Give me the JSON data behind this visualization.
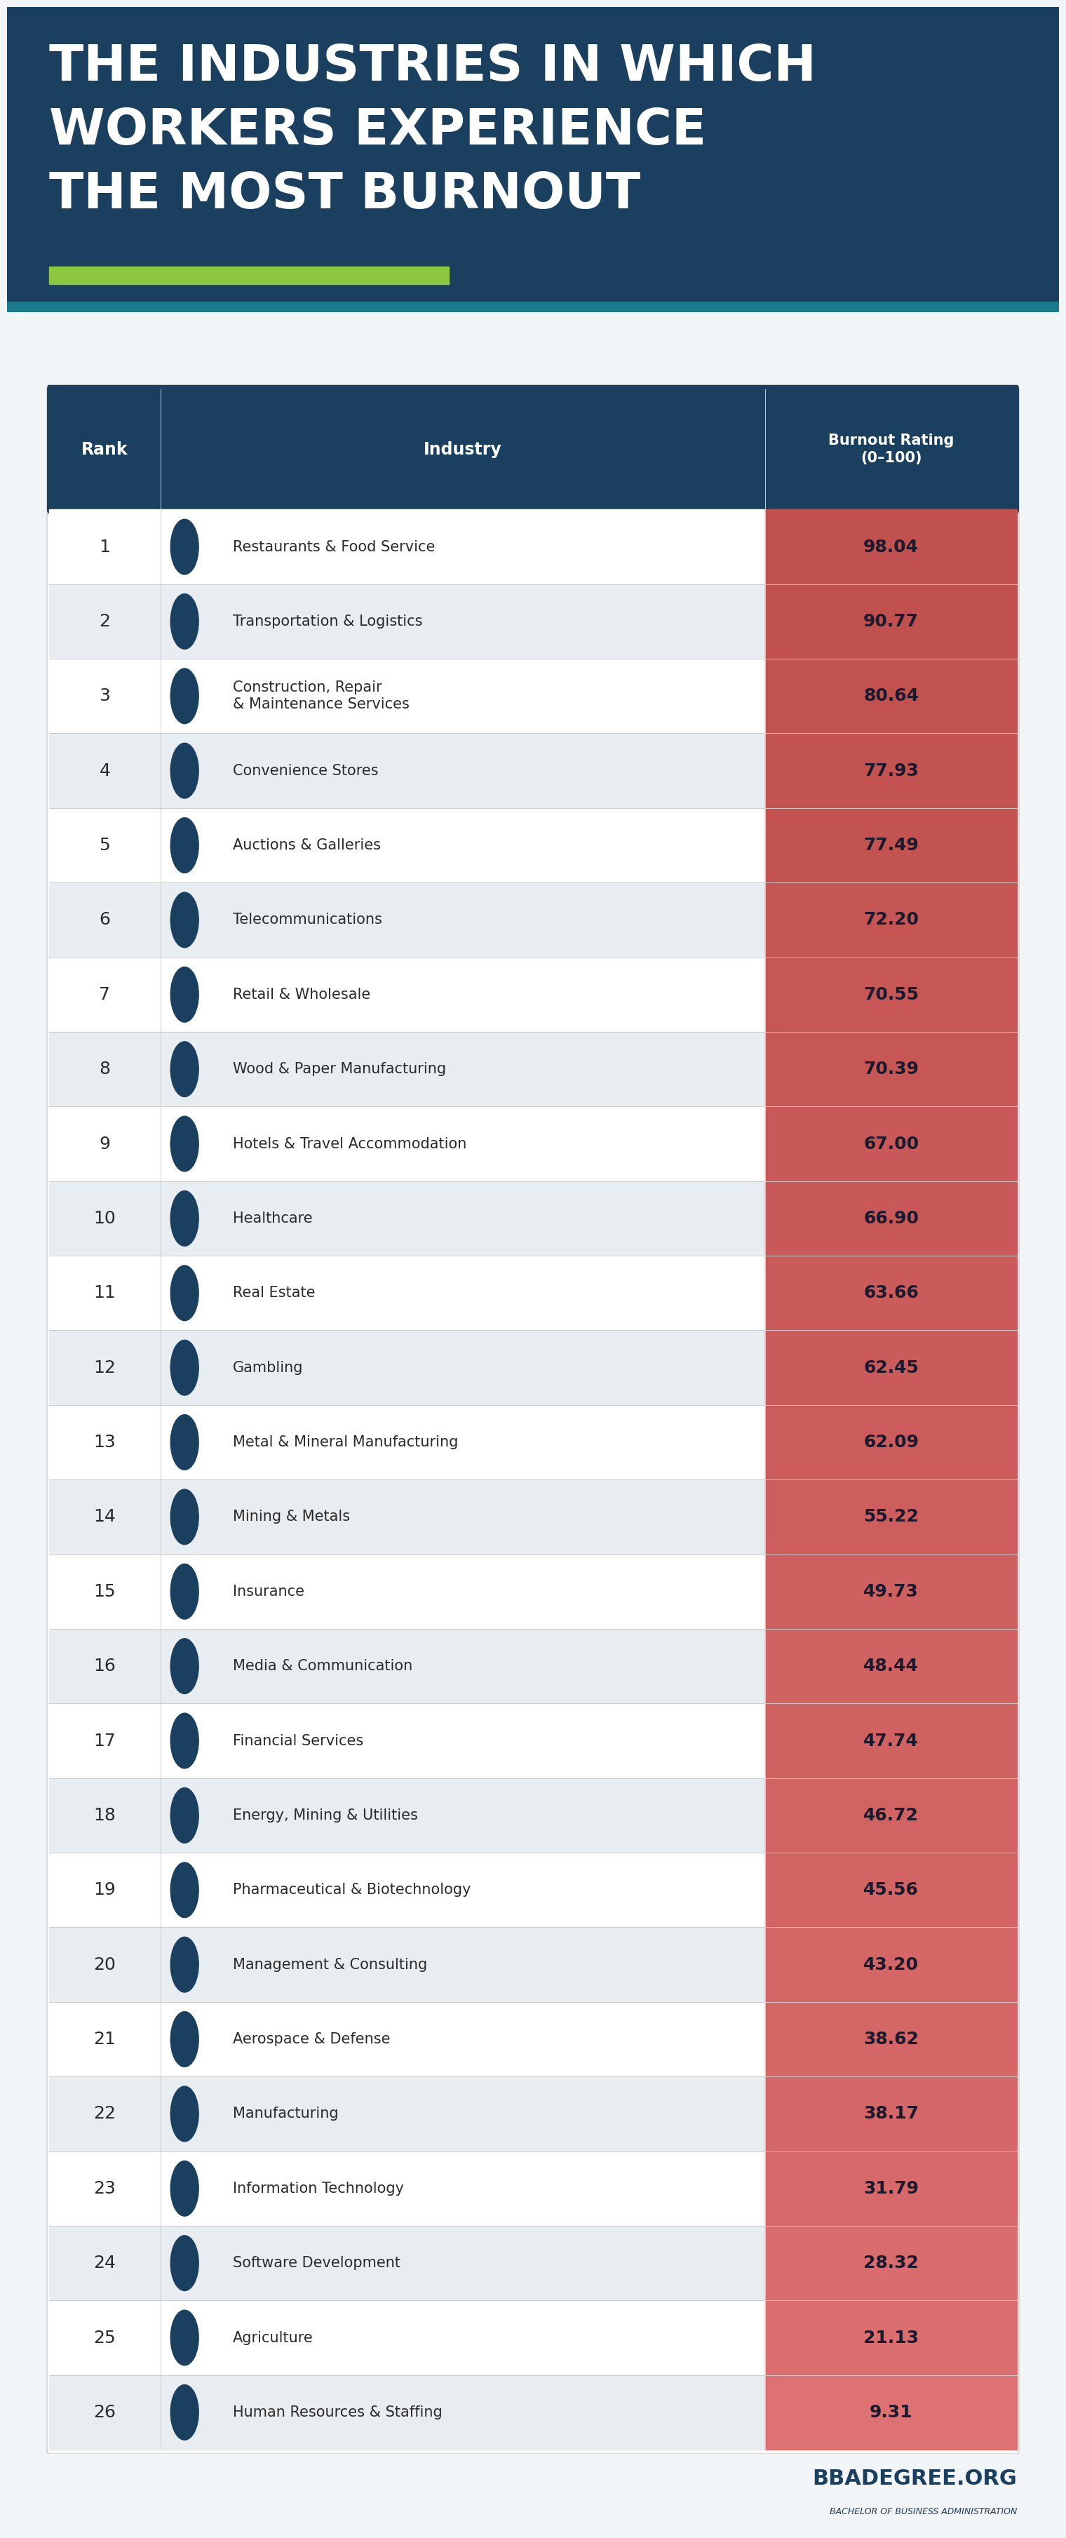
{
  "title_line1": "THE INDUSTRIES IN WHICH",
  "title_line2": "WORKERS EXPERIENCE",
  "title_line3": "THE MOST BURNOUT",
  "header_bg": "#1b3f5e",
  "header_text_color": "#ffffff",
  "accent_green": "#8dc63f",
  "table_bg_white": "#ffffff",
  "table_bg_light": "#e8edf2",
  "rating_text_color": "#1a1a2e",
  "rank_text_color": "#2a2a2a",
  "industry_text_color": "#2a2a2a",
  "icon_bg": "#1b3f5e",
  "header_col1": "Rank",
  "header_col2": "Industry",
  "header_col3": "Burnout Rating\n(0–100)",
  "title_bg_top": "#1b3f5e",
  "title_bg_bottom": "#2a6080",
  "overall_bg": "#f2f5f8",
  "footer_text": "BBADEGREE.ORG",
  "footer_subtext": "BACHELOR OF BUSINESS ADMINISTRATION",
  "rating_colors": [
    "#c0514e",
    "#c0514e",
    "#c25250",
    "#c35351",
    "#c35351",
    "#c55654",
    "#c65755",
    "#c65755",
    "#c85958",
    "#c85958",
    "#ca5b5a",
    "#ca5b5a",
    "#cb5c5b",
    "#cd5e5d",
    "#cf6060",
    "#d06261",
    "#d06261",
    "#d16362",
    "#d26464",
    "#d46666",
    "#d46666",
    "#d56768",
    "#d7696a",
    "#d96c6c",
    "#db6e6f",
    "#de7272"
  ],
  "rows": [
    {
      "rank": 1,
      "industry": "Restaurants & Food Service",
      "rating": 98.04
    },
    {
      "rank": 2,
      "industry": "Transportation & Logistics",
      "rating": 90.77
    },
    {
      "rank": 3,
      "industry": "Construction, Repair\n& Maintenance Services",
      "rating": 80.64
    },
    {
      "rank": 4,
      "industry": "Convenience Stores",
      "rating": 77.93
    },
    {
      "rank": 5,
      "industry": "Auctions & Galleries",
      "rating": 77.49
    },
    {
      "rank": 6,
      "industry": "Telecommunications",
      "rating": 72.2
    },
    {
      "rank": 7,
      "industry": "Retail & Wholesale",
      "rating": 70.55
    },
    {
      "rank": 8,
      "industry": "Wood & Paper Manufacturing",
      "rating": 70.39
    },
    {
      "rank": 9,
      "industry": "Hotels & Travel Accommodation",
      "rating": 67.0
    },
    {
      "rank": 10,
      "industry": "Healthcare",
      "rating": 66.9
    },
    {
      "rank": 11,
      "industry": "Real Estate",
      "rating": 63.66
    },
    {
      "rank": 12,
      "industry": "Gambling",
      "rating": 62.45
    },
    {
      "rank": 13,
      "industry": "Metal & Mineral Manufacturing",
      "rating": 62.09
    },
    {
      "rank": 14,
      "industry": "Mining & Metals",
      "rating": 55.22
    },
    {
      "rank": 15,
      "industry": "Insurance",
      "rating": 49.73
    },
    {
      "rank": 16,
      "industry": "Media & Communication",
      "rating": 48.44
    },
    {
      "rank": 17,
      "industry": "Financial Services",
      "rating": 47.74
    },
    {
      "rank": 18,
      "industry": "Energy, Mining & Utilities",
      "rating": 46.72
    },
    {
      "rank": 19,
      "industry": "Pharmaceutical & Biotechnology",
      "rating": 45.56
    },
    {
      "rank": 20,
      "industry": "Management & Consulting",
      "rating": 43.2
    },
    {
      "rank": 21,
      "industry": "Aerospace & Defense",
      "rating": 38.62
    },
    {
      "rank": 22,
      "industry": "Manufacturing",
      "rating": 38.17
    },
    {
      "rank": 23,
      "industry": "Information Technology",
      "rating": 31.79
    },
    {
      "rank": 24,
      "industry": "Software Development",
      "rating": 28.32
    },
    {
      "rank": 25,
      "industry": "Agriculture",
      "rating": 21.13
    },
    {
      "rank": 26,
      "industry": "Human Resources & Staffing",
      "rating": 9.31
    }
  ]
}
